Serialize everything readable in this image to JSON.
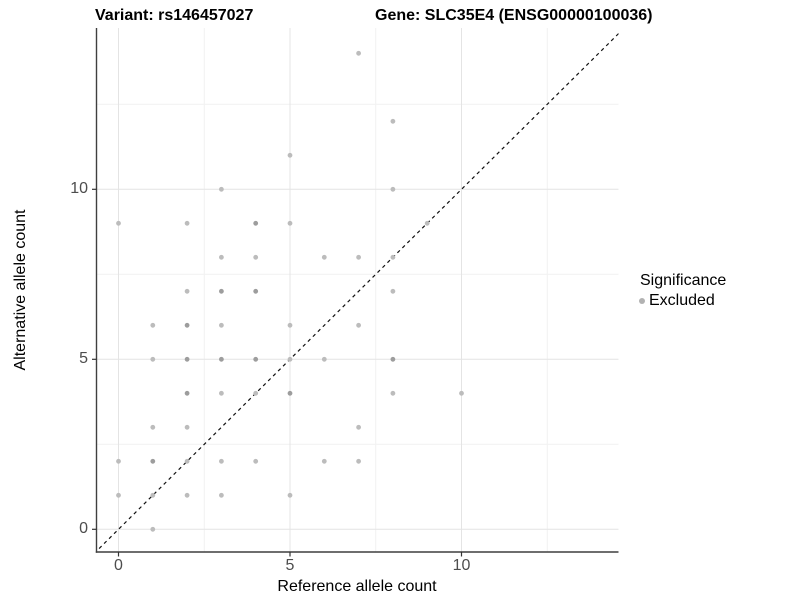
{
  "titles": {
    "variant": "Variant: rs146457027",
    "gene": "Gene: SLC35E4 (ENSG00000100036)"
  },
  "axes": {
    "x": {
      "label": "Reference allele count",
      "tick_values": [
        0,
        5,
        10
      ],
      "tick_labels": [
        "0",
        "5",
        "10"
      ],
      "minor_tick_values": [
        2.5,
        7.5,
        12.5
      ],
      "range": [
        -0.65,
        14.6
      ]
    },
    "y": {
      "label": "Alternative allele count",
      "tick_values": [
        0,
        5,
        10
      ],
      "tick_labels": [
        "0",
        "5",
        "10"
      ],
      "minor_tick_values": [
        2.5,
        7.5,
        12.5
      ],
      "range": [
        -0.65,
        14.75
      ]
    }
  },
  "legend": {
    "title": "Significance",
    "items": [
      {
        "label": "Excluded",
        "color": "#b2b2b2"
      }
    ]
  },
  "colors": {
    "background": "#ffffff",
    "grid_major": "#e4e4e4",
    "grid_minor": "#f1f1f1",
    "axis_line": "#3f3f3f",
    "tick_mark": "#333333",
    "tick_text": "#4d4d4d",
    "title_text": "#000000",
    "identity_line": "#111111",
    "point": "#bcbcbc",
    "point_overlap": "#9d9d9d"
  },
  "chart_data": {
    "type": "scatter",
    "title": "Variant: rs146457027   Gene: SLC35E4 (ENSG00000100036)",
    "xlabel": "Reference allele count",
    "ylabel": "Alternative allele count",
    "xlim": [
      -0.65,
      14.6
    ],
    "ylim": [
      -0.65,
      14.75
    ],
    "x_ticks": [
      0,
      5,
      10
    ],
    "y_ticks": [
      0,
      5,
      10
    ],
    "grid": "major and minor (2.5 steps), light gray on white",
    "legend_position": "right-middle",
    "annotations": [
      "dashed identity line y = x from bottom-left to top-right"
    ],
    "series": [
      {
        "name": "Excluded",
        "points": [
          [
            7,
            14
          ],
          [
            8,
            12
          ],
          [
            5,
            11
          ],
          [
            3,
            10
          ],
          [
            8,
            10
          ],
          [
            0,
            9
          ],
          [
            2,
            9
          ],
          [
            4,
            9
          ],
          [
            5,
            9
          ],
          [
            9,
            9
          ],
          [
            3,
            8
          ],
          [
            4,
            8
          ],
          [
            6,
            8
          ],
          [
            7,
            8
          ],
          [
            8,
            8
          ],
          [
            2,
            7
          ],
          [
            3,
            7
          ],
          [
            4,
            7
          ],
          [
            8,
            7
          ],
          [
            1,
            6
          ],
          [
            2,
            6
          ],
          [
            3,
            6
          ],
          [
            5,
            6
          ],
          [
            7,
            6
          ],
          [
            1,
            5
          ],
          [
            2,
            5
          ],
          [
            3,
            5
          ],
          [
            4,
            5
          ],
          [
            5,
            5
          ],
          [
            6,
            5
          ],
          [
            8,
            5
          ],
          [
            2,
            4
          ],
          [
            3,
            4
          ],
          [
            4,
            4
          ],
          [
            5,
            4
          ],
          [
            8,
            4
          ],
          [
            10,
            4
          ],
          [
            1,
            3
          ],
          [
            2,
            3
          ],
          [
            7,
            3
          ],
          [
            0,
            2
          ],
          [
            1,
            2
          ],
          [
            2,
            2
          ],
          [
            3,
            2
          ],
          [
            4,
            2
          ],
          [
            6,
            2
          ],
          [
            7,
            2
          ],
          [
            0,
            1
          ],
          [
            1,
            1
          ],
          [
            2,
            1
          ],
          [
            3,
            1
          ],
          [
            5,
            1
          ],
          [
            1,
            0
          ]
        ]
      }
    ],
    "darker_overlap_points": [
      [
        4,
        9
      ],
      [
        3,
        7
      ],
      [
        4,
        7
      ],
      [
        2,
        6
      ],
      [
        2,
        5
      ],
      [
        3,
        5
      ],
      [
        4,
        5
      ],
      [
        8,
        5
      ],
      [
        2,
        4
      ],
      [
        5,
        4
      ],
      [
        1,
        2
      ]
    ]
  }
}
